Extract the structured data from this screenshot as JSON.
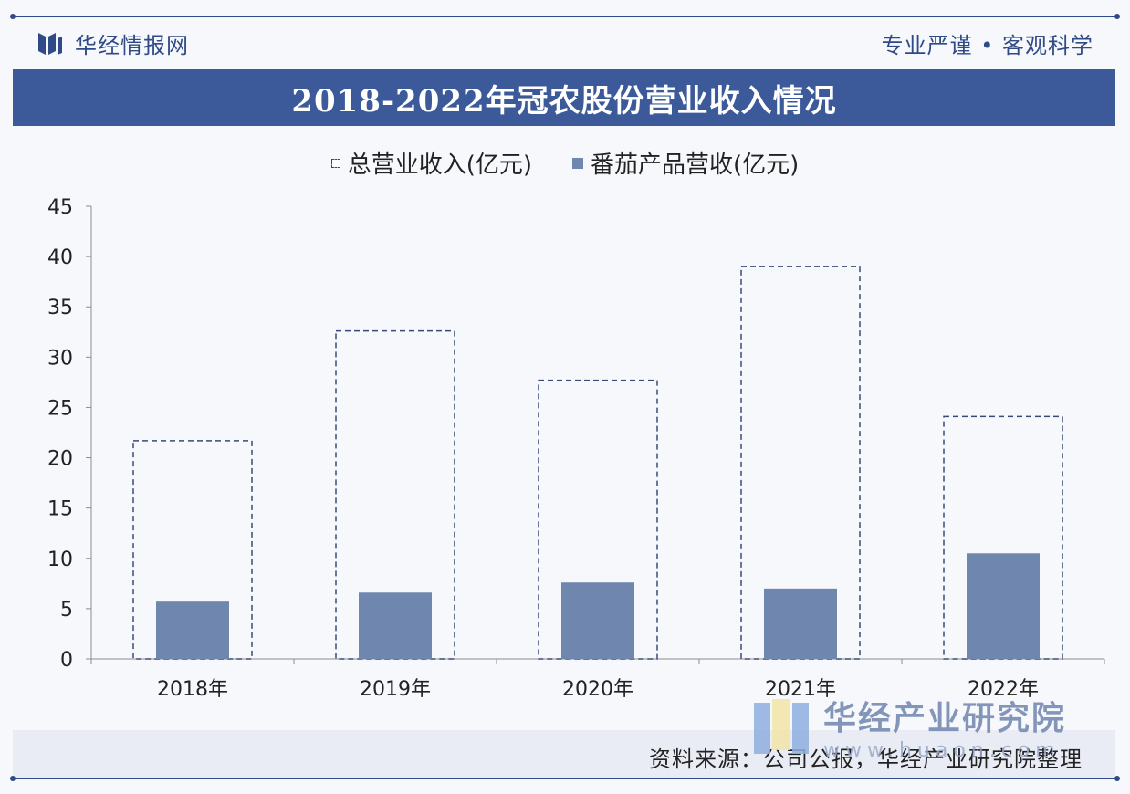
{
  "header": {
    "brand_name": "华经情报网",
    "slogan": "专业严谨 • 客观科学",
    "title": "2018-2022年冠农股份营业收入情况"
  },
  "footer": {
    "source": "资料来源：公司公报，华经产业研究院整理"
  },
  "watermark": {
    "name": "华经产业研究院",
    "url": "www.huaon.com"
  },
  "colors": {
    "accent": "#3c5a99",
    "bar": "#6f86ae",
    "outline": "#3a4a78"
  },
  "chart_data": {
    "type": "bar",
    "categories": [
      "2018年",
      "2019年",
      "2020年",
      "2021年",
      "2022年"
    ],
    "series": [
      {
        "name": "总营业收入(亿元)",
        "style": "dashed-outline",
        "values": [
          21.7,
          32.6,
          27.7,
          39.0,
          24.1
        ]
      },
      {
        "name": "番茄产品营收(亿元)",
        "style": "solid",
        "values": [
          5.7,
          6.6,
          7.6,
          7.0,
          10.5
        ]
      }
    ],
    "ylim": [
      0,
      45
    ],
    "yticks": [
      0,
      5,
      10,
      15,
      20,
      25,
      30,
      35,
      40,
      45
    ],
    "legend_position": "top-center",
    "grid": false
  }
}
